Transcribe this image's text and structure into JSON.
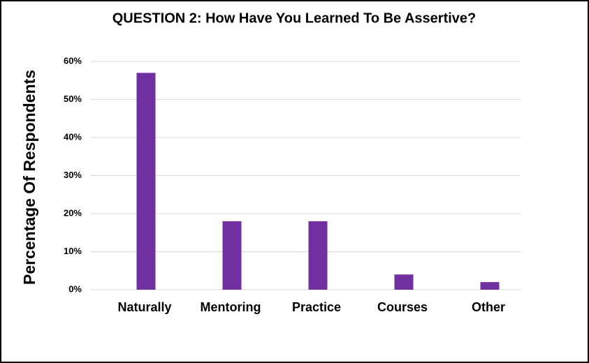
{
  "chart_data": {
    "type": "bar",
    "title": "QUESTION 2: How Have You Learned To Be Assertive?",
    "y_label": "Percentage Of Respondents",
    "categories": [
      "Naturally",
      "Mentoring",
      "Practice",
      "Courses",
      "Other"
    ],
    "values": [
      57,
      18,
      18,
      4,
      2
    ],
    "color": "#7030a0",
    "ylim": [
      0,
      60
    ],
    "yticks": [
      {
        "value": 0,
        "label": "0%"
      },
      {
        "value": 10,
        "label": "10%"
      },
      {
        "value": 20,
        "label": "20%"
      },
      {
        "value": 30,
        "label": "30%"
      },
      {
        "value": 40,
        "label": "40%"
      },
      {
        "value": 50,
        "label": "50%"
      },
      {
        "value": 60,
        "label": "60%"
      }
    ],
    "grid": true
  }
}
